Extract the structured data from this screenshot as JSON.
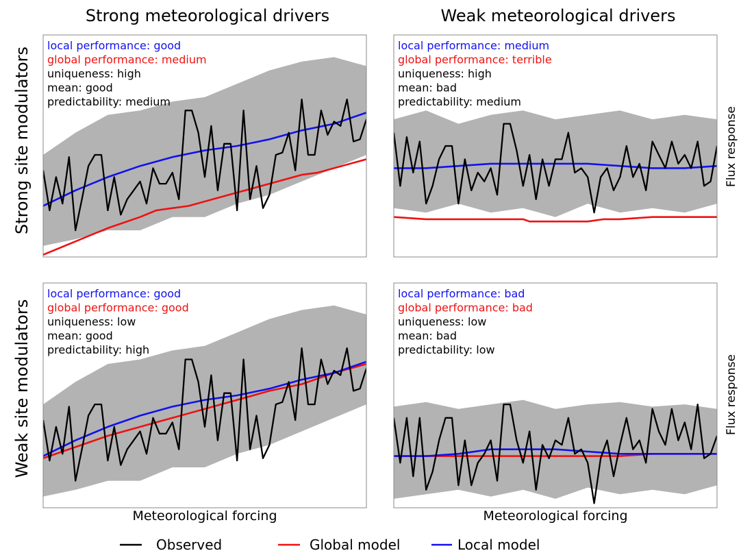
{
  "figure": {
    "column_titles": [
      "Strong meteorological drivers",
      "Weak meteorological drivers"
    ],
    "row_labels": [
      "Strong site modulators",
      "Weak site modulators"
    ],
    "right_ylabel": "Flux response",
    "xlabel": "Meteorological forcing",
    "legend": [
      {
        "label": "Observed",
        "color": "#000000"
      },
      {
        "label": "Global model",
        "color": "#ee1111"
      },
      {
        "label": "Local model",
        "color": "#1111ee"
      }
    ]
  },
  "colors": {
    "observed": "#000000",
    "global": "#ee1111",
    "local": "#1111ee",
    "band": "#b3b3b3",
    "frame": "#888888"
  },
  "chart_data": [
    {
      "type": "line",
      "panel": "Strong meteorological drivers / Strong site modulators",
      "title": "Strong meteorological drivers",
      "ylabel": "Strong site modulators",
      "xlabel": "",
      "xlim": [
        0,
        100
      ],
      "ylim": [
        0,
        100
      ],
      "grid": false,
      "annotations": [
        {
          "text": "local performance: good",
          "color": "#1111ee"
        },
        {
          "text": "global performance: medium",
          "color": "#ee1111"
        },
        {
          "text": "uniqueness: high",
          "color": "#000000"
        },
        {
          "text": "mean: good",
          "color": "#000000"
        },
        {
          "text": "predictability: medium",
          "color": "#000000"
        }
      ],
      "band": {
        "x": [
          0,
          10,
          20,
          30,
          40,
          50,
          60,
          70,
          80,
          90,
          100
        ],
        "lower": [
          5,
          8,
          12,
          12,
          18,
          18,
          24,
          28,
          34,
          40,
          46
        ],
        "upper": [
          46,
          56,
          64,
          66,
          70,
          72,
          78,
          84,
          88,
          90,
          86
        ]
      },
      "series": [
        {
          "key": "observed",
          "x": [
            0,
            2,
            4,
            6,
            8,
            10,
            12,
            14,
            16,
            18,
            20,
            22,
            24,
            26,
            28,
            30,
            32,
            34,
            36,
            38,
            40,
            42,
            44,
            46,
            48,
            50,
            52,
            54,
            56,
            58,
            60,
            62,
            64,
            66,
            68,
            70,
            72,
            74,
            76,
            78,
            80,
            82,
            84,
            86,
            88,
            90,
            92,
            94,
            96,
            98,
            100
          ],
          "values": [
            39,
            21,
            36,
            24,
            45,
            12,
            26,
            41,
            46,
            46,
            21,
            36,
            19,
            26,
            30,
            34,
            24,
            40,
            33,
            33,
            38,
            26,
            66,
            66,
            56,
            36,
            59,
            30,
            51,
            51,
            21,
            66,
            26,
            41,
            22,
            28,
            46,
            47,
            56,
            39,
            71,
            46,
            46,
            66,
            55,
            61,
            59,
            71,
            52,
            53,
            62
          ]
        },
        {
          "key": "global",
          "x": [
            0,
            10,
            20,
            30,
            35,
            40,
            45,
            50,
            55,
            60,
            65,
            70,
            75,
            80,
            85,
            90,
            95,
            100
          ],
          "values": [
            1,
            7,
            13,
            18,
            21,
            22,
            23,
            25,
            27,
            29,
            31,
            33,
            35,
            37,
            38,
            40,
            42,
            44
          ]
        },
        {
          "key": "local",
          "x": [
            0,
            10,
            20,
            30,
            40,
            50,
            60,
            70,
            80,
            90,
            100
          ],
          "values": [
            23,
            30,
            36,
            41,
            45,
            48,
            50,
            53,
            57,
            60,
            65
          ]
        }
      ]
    },
    {
      "type": "line",
      "panel": "Weak meteorological drivers / Strong site modulators",
      "title": "Weak meteorological drivers",
      "ylabel": "Flux response",
      "xlabel": "",
      "xlim": [
        0,
        100
      ],
      "ylim": [
        0,
        100
      ],
      "grid": false,
      "annotations": [
        {
          "text": "local performance: medium",
          "color": "#1111ee"
        },
        {
          "text": "global performance: terrible",
          "color": "#ee1111"
        },
        {
          "text": "uniqueness: high",
          "color": "#000000"
        },
        {
          "text": "mean: bad",
          "color": "#000000"
        },
        {
          "text": "predictability: medium",
          "color": "#000000"
        }
      ],
      "band": {
        "x": [
          0,
          10,
          20,
          30,
          40,
          50,
          60,
          70,
          80,
          90,
          100
        ],
        "lower": [
          22,
          20,
          24,
          20,
          22,
          18,
          24,
          20,
          22,
          20,
          24
        ],
        "upper": [
          62,
          66,
          60,
          64,
          66,
          62,
          64,
          66,
          62,
          64,
          62
        ]
      },
      "series": [
        {
          "key": "observed",
          "x": [
            0,
            2,
            4,
            6,
            8,
            10,
            12,
            14,
            16,
            18,
            20,
            22,
            24,
            26,
            28,
            30,
            32,
            34,
            36,
            38,
            40,
            42,
            44,
            46,
            48,
            50,
            52,
            54,
            56,
            58,
            60,
            62,
            64,
            66,
            68,
            70,
            72,
            74,
            76,
            78,
            80,
            82,
            84,
            86,
            88,
            90,
            92,
            94,
            96,
            98,
            100
          ],
          "values": [
            56,
            32,
            54,
            38,
            52,
            24,
            32,
            44,
            50,
            50,
            24,
            44,
            30,
            38,
            34,
            40,
            28,
            60,
            60,
            48,
            32,
            46,
            26,
            44,
            32,
            44,
            44,
            56,
            38,
            40,
            36,
            20,
            36,
            40,
            30,
            36,
            50,
            36,
            42,
            30,
            52,
            46,
            40,
            52,
            42,
            46,
            40,
            52,
            32,
            34,
            50
          ]
        },
        {
          "key": "global",
          "x": [
            0,
            10,
            20,
            30,
            35,
            40,
            42,
            45,
            50,
            60,
            65,
            70,
            80,
            90,
            100
          ],
          "values": [
            18,
            17,
            17,
            17,
            17,
            17,
            16,
            16,
            16,
            16,
            17,
            17,
            18,
            18,
            18
          ]
        },
        {
          "key": "local",
          "x": [
            0,
            10,
            20,
            30,
            40,
            50,
            60,
            70,
            80,
            90,
            100
          ],
          "values": [
            40,
            40,
            41,
            42,
            42,
            42,
            42,
            41,
            40,
            40,
            41
          ]
        }
      ]
    },
    {
      "type": "line",
      "panel": "Strong meteorological drivers / Weak site modulators",
      "title": "",
      "ylabel": "Weak site modulators",
      "xlabel": "Meteorological forcing",
      "xlim": [
        0,
        100
      ],
      "ylim": [
        0,
        100
      ],
      "grid": false,
      "annotations": [
        {
          "text": "local performance: good",
          "color": "#1111ee"
        },
        {
          "text": "global performance: good",
          "color": "#ee1111"
        },
        {
          "text": "uniqueness: low",
          "color": "#000000"
        },
        {
          "text": "mean: good",
          "color": "#000000"
        },
        {
          "text": "predictability: high",
          "color": "#000000"
        }
      ],
      "band": {
        "x": [
          0,
          10,
          20,
          30,
          40,
          50,
          60,
          70,
          80,
          90,
          100
        ],
        "lower": [
          5,
          8,
          12,
          12,
          18,
          18,
          24,
          28,
          34,
          40,
          46
        ],
        "upper": [
          46,
          56,
          64,
          66,
          70,
          72,
          78,
          84,
          88,
          90,
          86
        ]
      },
      "series": [
        {
          "key": "observed",
          "x": [
            0,
            2,
            4,
            6,
            8,
            10,
            12,
            14,
            16,
            18,
            20,
            22,
            24,
            26,
            28,
            30,
            32,
            34,
            36,
            38,
            40,
            42,
            44,
            46,
            48,
            50,
            52,
            54,
            56,
            58,
            60,
            62,
            64,
            66,
            68,
            70,
            72,
            74,
            76,
            78,
            80,
            82,
            84,
            86,
            88,
            90,
            92,
            94,
            96,
            98,
            100
          ],
          "values": [
            39,
            21,
            36,
            24,
            45,
            12,
            26,
            41,
            46,
            46,
            21,
            36,
            19,
            26,
            30,
            34,
            24,
            40,
            33,
            33,
            38,
            26,
            66,
            66,
            56,
            36,
            59,
            30,
            51,
            51,
            21,
            66,
            26,
            41,
            22,
            28,
            46,
            47,
            56,
            39,
            71,
            46,
            46,
            66,
            55,
            61,
            59,
            71,
            52,
            53,
            62
          ]
        },
        {
          "key": "global",
          "x": [
            0,
            10,
            20,
            30,
            40,
            50,
            60,
            70,
            80,
            90,
            100
          ],
          "values": [
            22,
            27,
            32,
            36,
            40,
            44,
            48,
            52,
            55,
            60,
            64
          ]
        },
        {
          "key": "local",
          "x": [
            0,
            10,
            20,
            30,
            40,
            50,
            60,
            70,
            80,
            90,
            100
          ],
          "values": [
            23,
            30,
            36,
            41,
            45,
            48,
            50,
            53,
            57,
            60,
            65
          ]
        }
      ]
    },
    {
      "type": "line",
      "panel": "Weak meteorological drivers / Weak site modulators",
      "title": "",
      "ylabel": "Flux response",
      "xlabel": "Meteorological forcing",
      "xlim": [
        0,
        100
      ],
      "ylim": [
        0,
        100
      ],
      "grid": false,
      "annotations": [
        {
          "text": "local performance: bad",
          "color": "#1111ee"
        },
        {
          "text": "global performance: bad",
          "color": "#ee1111"
        },
        {
          "text": "uniqueness: low",
          "color": "#000000"
        },
        {
          "text": "mean: bad",
          "color": "#000000"
        },
        {
          "text": "predictability: low",
          "color": "#000000"
        }
      ],
      "band": {
        "x": [
          0,
          10,
          20,
          30,
          40,
          50,
          60,
          70,
          80,
          90,
          100
        ],
        "lower": [
          4,
          6,
          8,
          5,
          8,
          4,
          9,
          6,
          8,
          6,
          10
        ],
        "upper": [
          45,
          47,
          44,
          46,
          48,
          44,
          46,
          47,
          45,
          46,
          44
        ]
      },
      "series": [
        {
          "key": "observed",
          "x": [
            0,
            2,
            4,
            6,
            8,
            10,
            12,
            14,
            16,
            18,
            20,
            22,
            24,
            26,
            28,
            30,
            32,
            34,
            36,
            38,
            40,
            42,
            44,
            46,
            48,
            50,
            52,
            54,
            56,
            58,
            60,
            62,
            64,
            66,
            68,
            70,
            72,
            74,
            76,
            78,
            80,
            82,
            84,
            86,
            88,
            90,
            92,
            94,
            96,
            98,
            100
          ],
          "values": [
            40,
            20,
            40,
            14,
            40,
            8,
            16,
            30,
            40,
            40,
            10,
            30,
            10,
            20,
            24,
            30,
            12,
            46,
            46,
            30,
            20,
            34,
            8,
            28,
            22,
            30,
            28,
            40,
            24,
            26,
            20,
            2,
            22,
            30,
            14,
            28,
            40,
            26,
            30,
            20,
            44,
            34,
            28,
            44,
            30,
            38,
            26,
            46,
            22,
            24,
            32
          ]
        },
        {
          "key": "global",
          "x": [
            0,
            10,
            20,
            30,
            40,
            50,
            60,
            70,
            80,
            90,
            100
          ],
          "values": [
            23,
            23,
            23,
            23,
            23,
            23,
            23,
            23,
            24,
            24,
            24
          ]
        },
        {
          "key": "local",
          "x": [
            0,
            10,
            20,
            30,
            40,
            50,
            60,
            70,
            80,
            90,
            100
          ],
          "values": [
            23,
            23,
            24,
            26,
            26,
            26,
            25,
            24,
            24,
            24,
            24
          ]
        }
      ]
    }
  ]
}
